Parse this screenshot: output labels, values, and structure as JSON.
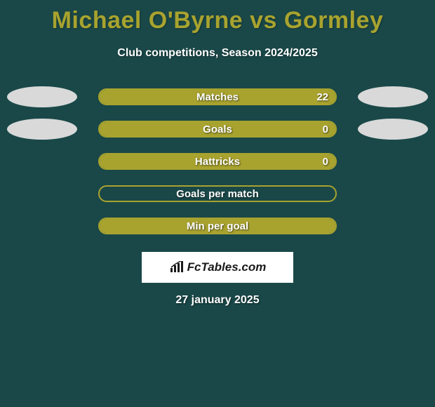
{
  "title": "Michael O'Byrne vs Gormley",
  "subtitle": "Club competitions, Season 2024/2025",
  "date": "27 january 2025",
  "logo_text": "FcTables.com",
  "colors": {
    "background": "#1a4848",
    "accent": "#a8a32f",
    "ellipse": "#d9d9d9",
    "title": "#a8a32f",
    "text": "#ffffff",
    "logo_bg": "#ffffff",
    "logo_text": "#1a1a1a"
  },
  "rows": [
    {
      "label": "Matches",
      "value": "22",
      "fill_pct": 100,
      "show_value": true,
      "left_ellipse": true,
      "right_ellipse": true
    },
    {
      "label": "Goals",
      "value": "0",
      "fill_pct": 100,
      "show_value": true,
      "left_ellipse": true,
      "right_ellipse": true
    },
    {
      "label": "Hattricks",
      "value": "0",
      "fill_pct": 100,
      "show_value": true,
      "left_ellipse": false,
      "right_ellipse": false
    },
    {
      "label": "Goals per match",
      "value": "",
      "fill_pct": 0,
      "show_value": false,
      "left_ellipse": false,
      "right_ellipse": false
    },
    {
      "label": "Min per goal",
      "value": "",
      "fill_pct": 100,
      "show_value": false,
      "left_ellipse": false,
      "right_ellipse": false
    }
  ]
}
